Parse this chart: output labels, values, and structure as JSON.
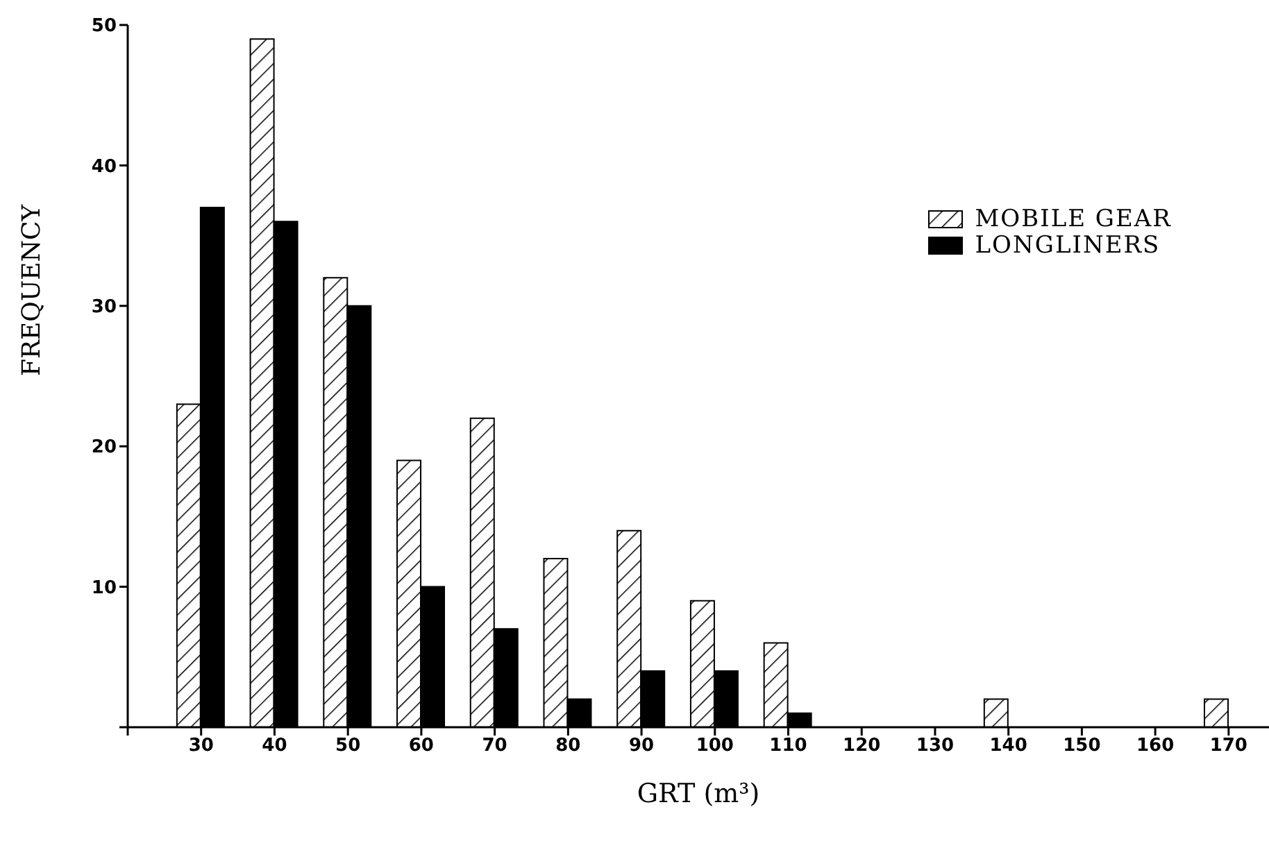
{
  "chart_data": {
    "type": "bar",
    "xlabel": "GRT (m³)",
    "ylabel": "FREQUENCY",
    "categories": [
      null,
      "30",
      "40",
      "50",
      "60",
      "70",
      "80",
      "90",
      "100",
      "110",
      "120",
      "130",
      "140",
      "150",
      "160",
      "170"
    ],
    "series": [
      {
        "name": "MOBILE GEAR",
        "color": "#000000",
        "values": [
          null,
          23,
          49,
          32,
          19,
          22,
          12,
          14,
          9,
          6,
          0,
          0,
          2,
          0,
          0,
          2
        ]
      },
      {
        "name": "LONGLINERS",
        "color": "#000000",
        "values": [
          null,
          37,
          36,
          30,
          10,
          7,
          2,
          4,
          4,
          1,
          0,
          0,
          0,
          0,
          0,
          0
        ]
      }
    ],
    "ylim": [
      0,
      50
    ],
    "yticks": [
      {
        "value": 0,
        "label": null
      },
      10,
      20,
      30,
      40,
      50
    ],
    "grid": false,
    "legend": "top right"
  }
}
